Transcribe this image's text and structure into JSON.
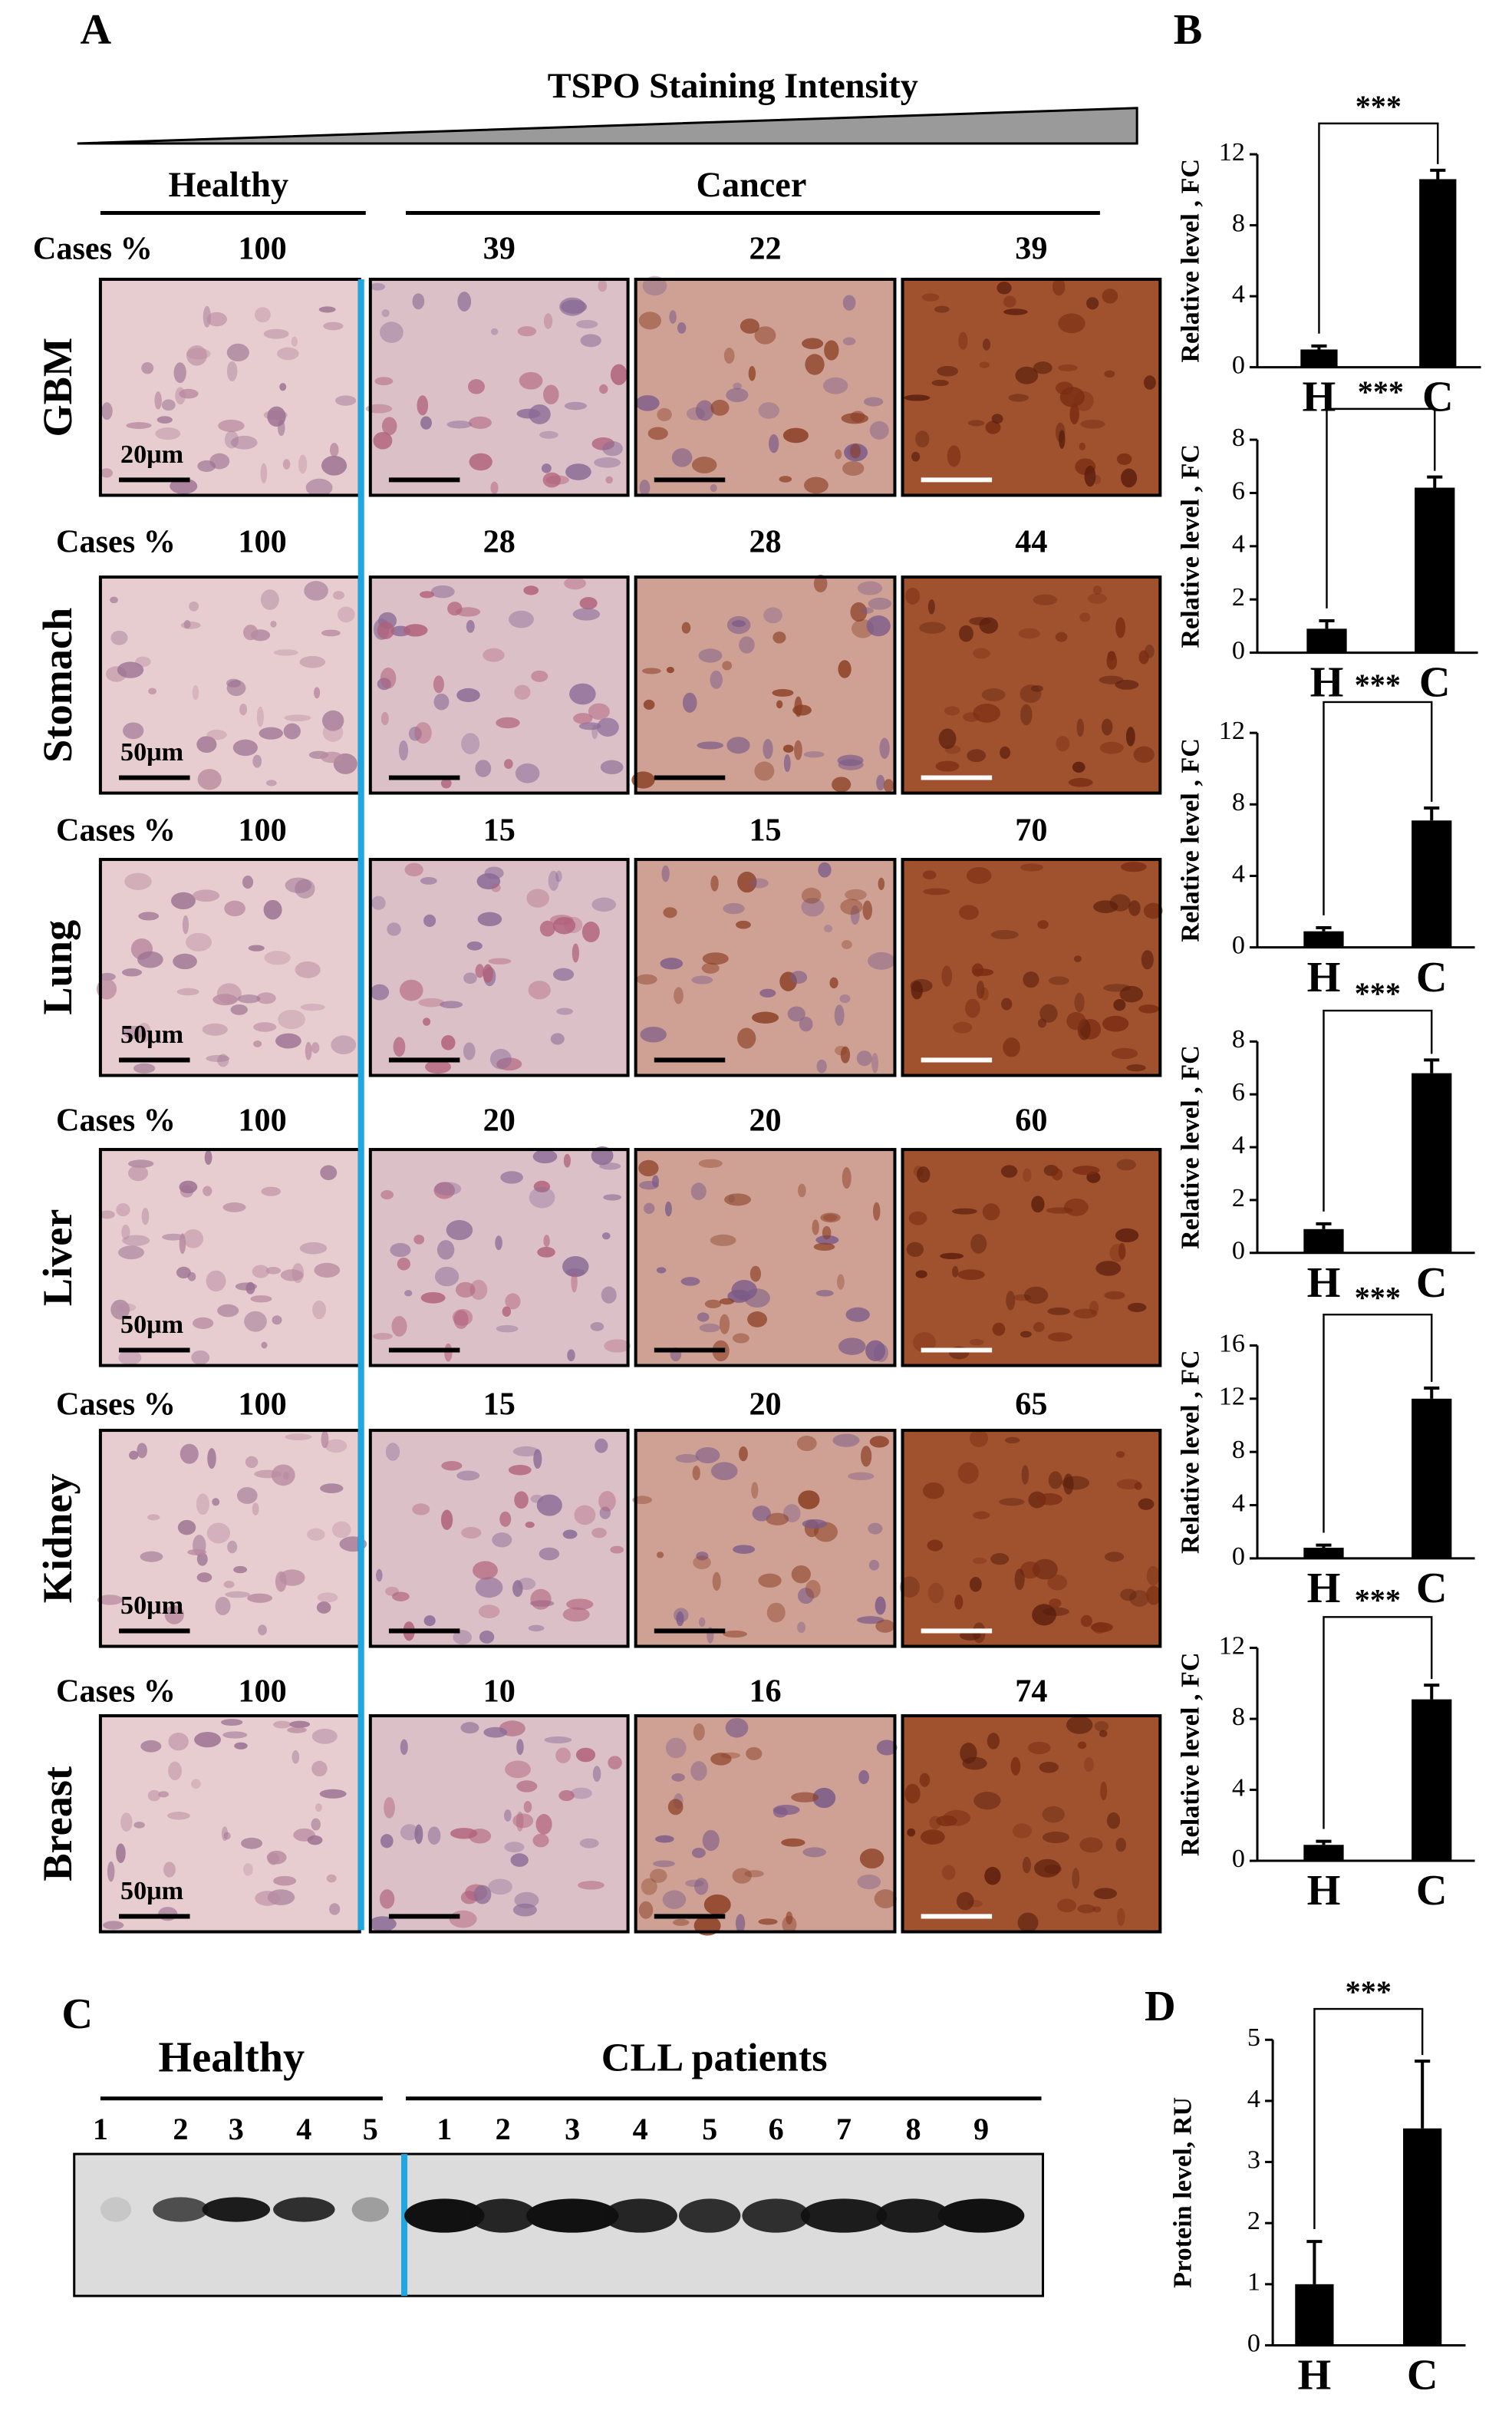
{
  "panel_labels": [
    "A",
    "B",
    "C",
    "D"
  ],
  "panel_a": {
    "gradient_label": "TSPO Staining Intensity",
    "group_healthy": "Healthy",
    "group_cancer": "Cancer",
    "rows": [
      {
        "tissue": "GBM",
        "cases_label": "Cases %",
        "cases": [
          100,
          39,
          22,
          39
        ],
        "scale_bar": "20μm"
      },
      {
        "tissue": "Stomach",
        "cases_label": "Cases %",
        "cases": [
          100,
          28,
          28,
          44
        ],
        "scale_bar": "50μm"
      },
      {
        "tissue": "Lung",
        "cases_label": "Cases %",
        "cases": [
          100,
          15,
          15,
          70
        ],
        "scale_bar": "50μm"
      },
      {
        "tissue": "Liver",
        "cases_label": "Cases %",
        "cases": [
          100,
          20,
          20,
          60
        ],
        "scale_bar": "50μm"
      },
      {
        "tissue": "Kidney",
        "cases_label": "Cases %",
        "cases": [
          100,
          15,
          20,
          65
        ],
        "scale_bar": "50μm"
      },
      {
        "tissue": "Breast",
        "cases_label": "Cases %",
        "cases": [
          100,
          10,
          16,
          74
        ],
        "scale_bar": "50μm"
      }
    ]
  },
  "panel_c": {
    "group_healthy": "Healthy",
    "group_patients": "CLL patients",
    "healthy_lanes": [
      "1",
      "2",
      "3",
      "4",
      "5"
    ],
    "patient_lanes": [
      "1",
      "2",
      "3",
      "4",
      "5",
      "6",
      "7",
      "8",
      "9"
    ]
  },
  "chart_data": [
    {
      "type": "bar",
      "ylabel": "Relative level , FC",
      "categories": [
        "H",
        "C"
      ],
      "values": [
        1.0,
        10.6
      ],
      "errors": [
        0.2,
        0.5
      ],
      "annotation": "***",
      "color": "#000000",
      "ylim": [
        0,
        12
      ],
      "yticks": [
        0,
        4,
        8,
        12
      ]
    },
    {
      "type": "bar",
      "ylabel": "Relative level , FC",
      "categories": [
        "H",
        "C"
      ],
      "values": [
        0.9,
        6.2
      ],
      "errors": [
        0.3,
        0.4
      ],
      "annotation": "***",
      "color": "#000000",
      "ylim": [
        0,
        8
      ],
      "yticks": [
        0,
        2,
        4,
        6,
        8
      ]
    },
    {
      "type": "bar",
      "ylabel": "Relative level , FC",
      "categories": [
        "H",
        "C"
      ],
      "values": [
        0.9,
        7.1
      ],
      "errors": [
        0.2,
        0.7
      ],
      "annotation": "***",
      "color": "#000000",
      "ylim": [
        0,
        12
      ],
      "yticks": [
        0,
        4,
        8,
        12
      ]
    },
    {
      "type": "bar",
      "ylabel": "Relative level , FC",
      "categories": [
        "H",
        "C"
      ],
      "values": [
        0.9,
        6.8
      ],
      "errors": [
        0.2,
        0.5
      ],
      "annotation": "***",
      "color": "#000000",
      "ylim": [
        0,
        8
      ],
      "yticks": [
        0,
        2,
        4,
        6,
        8
      ]
    },
    {
      "type": "bar",
      "ylabel": "Relative level , FC",
      "categories": [
        "H",
        "C"
      ],
      "values": [
        0.8,
        12.0
      ],
      "errors": [
        0.2,
        0.8
      ],
      "annotation": "***",
      "color": "#000000",
      "ylim": [
        0,
        16
      ],
      "yticks": [
        0,
        4,
        8,
        12,
        16
      ]
    },
    {
      "type": "bar",
      "ylabel": "Relative level , FC",
      "categories": [
        "H",
        "C"
      ],
      "values": [
        0.9,
        9.1
      ],
      "errors": [
        0.2,
        0.8
      ],
      "annotation": "***",
      "color": "#000000",
      "ylim": [
        0,
        12
      ],
      "yticks": [
        0,
        4,
        8,
        12
      ]
    },
    {
      "type": "bar",
      "ylabel": "Protein level, RU",
      "categories": [
        "H",
        "C"
      ],
      "values": [
        1.0,
        3.55
      ],
      "errors": [
        0.7,
        1.1
      ],
      "annotation": "***",
      "color": "#000000",
      "ylim": [
        0,
        5
      ],
      "yticks": [
        0,
        1,
        2,
        3,
        4,
        5
      ]
    }
  ]
}
